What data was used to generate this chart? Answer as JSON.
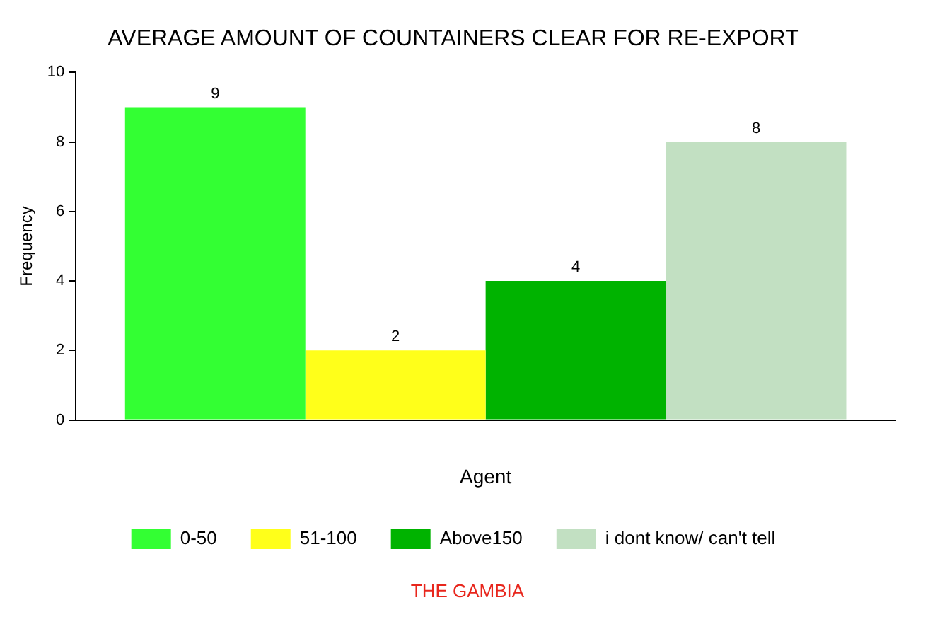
{
  "chart_data": {
    "type": "bar",
    "title": "AVERAGE AMOUNT OF COUNTAINERS CLEAR FOR RE-EXPORT",
    "xlabel": "Agent",
    "ylabel": "Frequency",
    "categories": [
      null
    ],
    "series": [
      {
        "name": "0-50",
        "color": "#33ff33",
        "values": [
          9
        ]
      },
      {
        "name": "51-100",
        "color": "#ffff1a",
        "values": [
          2
        ]
      },
      {
        "name": "Above150",
        "color": "#00b300",
        "values": [
          4
        ]
      },
      {
        "name": "i dont know/ can't tell",
        "color": "#c2e0c2",
        "values": [
          8
        ]
      }
    ],
    "ylim": [
      0,
      10
    ],
    "yticks": [
      0,
      2,
      4,
      6,
      8,
      10
    ],
    "grid": false,
    "legend": "bottom",
    "data_labels": true,
    "annotations": [
      "THE GAMBIA"
    ]
  }
}
